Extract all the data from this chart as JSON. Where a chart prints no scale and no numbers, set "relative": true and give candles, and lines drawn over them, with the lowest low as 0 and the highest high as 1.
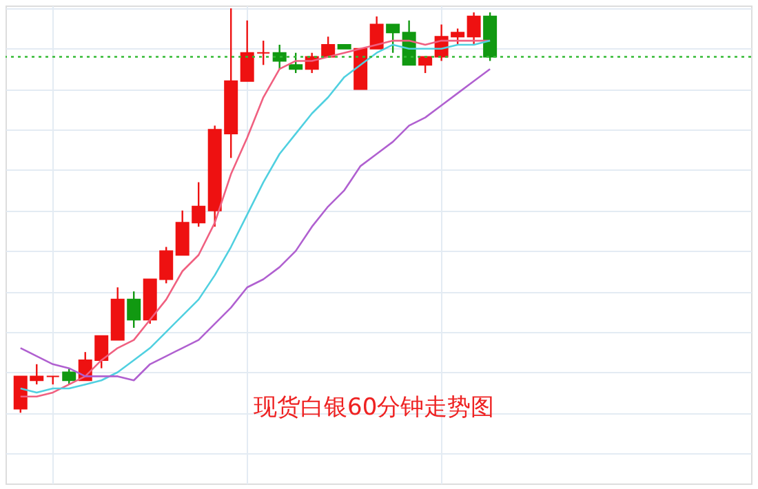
{
  "chart_data": {
    "type": "candlestick",
    "relative": true,
    "grid": true,
    "tick_labels": false,
    "categories": [
      null,
      null,
      null,
      null,
      null,
      null,
      null,
      null,
      null,
      null,
      null,
      null,
      null,
      null,
      null,
      null,
      null,
      null,
      null,
      null,
      null,
      null,
      null,
      null,
      null,
      null,
      null,
      null,
      null,
      null
    ],
    "ohlc": [
      [
        0.01,
        0.09,
        0,
        0.09
      ],
      [
        0.08,
        0.12,
        0.07,
        0.09
      ],
      [
        0.09,
        0.09,
        0.07,
        0.09
      ],
      [
        0.1,
        0.11,
        0.07,
        0.08
      ],
      [
        0.08,
        0.15,
        0.08,
        0.13
      ],
      [
        0.13,
        0.19,
        0.11,
        0.19
      ],
      [
        0.18,
        0.31,
        0.18,
        0.28
      ],
      [
        0.28,
        0.3,
        0.21,
        0.23
      ],
      [
        0.23,
        0.33,
        0.22,
        0.33
      ],
      [
        0.33,
        0.41,
        0.32,
        0.4
      ],
      [
        0.39,
        0.5,
        0.39,
        0.47
      ],
      [
        0.47,
        0.57,
        0.46,
        0.51
      ],
      [
        0.5,
        0.71,
        0.46,
        0.7
      ],
      [
        0.69,
        1,
        0.63,
        0.82
      ],
      [
        0.82,
        0.97,
        0.82,
        0.89
      ],
      [
        0.89,
        0.92,
        0.86,
        0.89
      ],
      [
        0.89,
        0.91,
        0.85,
        0.87
      ],
      [
        0.86,
        0.89,
        0.84,
        0.85
      ],
      [
        0.85,
        0.89,
        0.84,
        0.88
      ],
      [
        0.88,
        0.93,
        0.88,
        0.91
      ],
      [
        0.91,
        0.91,
        0.9,
        0.9
      ],
      [
        0.8,
        0.9,
        0.8,
        0.9
      ],
      [
        0.9,
        0.98,
        0.9,
        0.96
      ],
      [
        0.96,
        0.96,
        0.89,
        0.94
      ],
      [
        0.94,
        0.97,
        0.86,
        0.86
      ],
      [
        0.86,
        0.88,
        0.84,
        0.88
      ],
      [
        0.88,
        0.96,
        0.87,
        0.93
      ],
      [
        0.93,
        0.95,
        0.91,
        0.94
      ],
      [
        0.93,
        0.99,
        0.91,
        0.98
      ],
      [
        0.98,
        0.99,
        0.87,
        0.88
      ]
    ],
    "colors": [
      "#ee1111",
      "#ee1111",
      "#ee1111",
      "#119911",
      "#ee1111",
      "#ee1111",
      "#ee1111",
      "#119911",
      "#ee1111",
      "#ee1111",
      "#ee1111",
      "#ee1111",
      "#ee1111",
      "#ee1111",
      "#ee1111",
      "#ee1111",
      "#119911",
      "#119911",
      "#ee1111",
      "#ee1111",
      "#119911",
      "#ee1111",
      "#ee1111",
      "#119911",
      "#119911",
      "#ee1111",
      "#ee1111",
      "#ee1111",
      "#ee1111",
      "#119911"
    ],
    "series": [
      {
        "type": "line",
        "color": "#f06080",
        "values": [
          0.04,
          0.04,
          0.05,
          0.07,
          0.09,
          0.13,
          0.16,
          0.18,
          0.23,
          0.28,
          0.35,
          0.39,
          0.47,
          0.59,
          0.68,
          0.78,
          0.85,
          0.87,
          0.87,
          0.88,
          0.89,
          0.9,
          0.91,
          0.92,
          0.92,
          0.91,
          0.92,
          0.92,
          0.92,
          0.92
        ]
      },
      {
        "type": "line",
        "color": "#50d0e0",
        "values": [
          0.06,
          0.05,
          0.06,
          0.06,
          0.07,
          0.08,
          0.1,
          0.13,
          0.16,
          0.2,
          0.24,
          0.28,
          0.34,
          0.41,
          0.49,
          0.57,
          0.64,
          0.69,
          0.74,
          0.78,
          0.83,
          0.86,
          0.89,
          0.91,
          0.9,
          0.9,
          0.9,
          0.91,
          0.91,
          0.92
        ]
      },
      {
        "type": "line",
        "color": "#b060d0",
        "values": [
          0.16,
          0.14,
          0.12,
          0.11,
          0.09,
          0.09,
          0.09,
          0.08,
          0.12,
          0.14,
          0.16,
          0.18,
          0.22,
          0.26,
          0.31,
          0.33,
          0.36,
          0.4,
          0.46,
          0.51,
          0.55,
          0.61,
          0.64,
          0.67,
          0.71,
          0.73,
          0.76,
          0.79,
          0.82,
          0.85
        ]
      }
    ],
    "ref_lines": [
      {
        "axis": "y",
        "value": 0.88,
        "color": "#33bb33",
        "line_style": "dotted"
      }
    ],
    "annotations": [
      "现货白银60分钟走势图"
    ]
  }
}
